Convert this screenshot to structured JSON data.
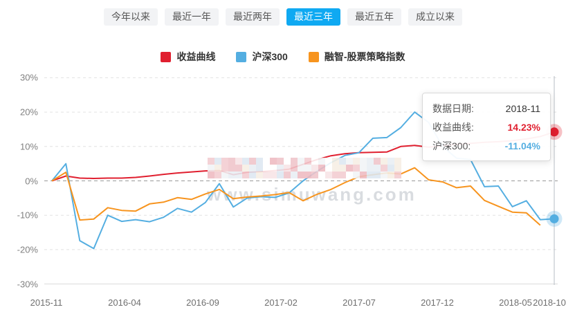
{
  "tabs": {
    "active_index": 3,
    "items": [
      {
        "label": "今年以来"
      },
      {
        "label": "最近一年"
      },
      {
        "label": "最近两年"
      },
      {
        "label": "最近三年"
      },
      {
        "label": "最近五年"
      },
      {
        "label": "成立以来"
      }
    ]
  },
  "legend": {
    "items": [
      {
        "label": "收益曲线",
        "color": "#e01f2f"
      },
      {
        "label": "沪深300",
        "color": "#54aee1"
      },
      {
        "label": "融智-股票策略指数",
        "color": "#f7941e"
      }
    ]
  },
  "tooltip": {
    "date_label": "数据日期:",
    "date_value": "2018-11",
    "rows": [
      {
        "label": "收益曲线:",
        "value": "14.23%",
        "color_class": "red"
      },
      {
        "label": "沪深300:",
        "value": "-11.04%",
        "color_class": "blue"
      }
    ]
  },
  "watermark": {
    "text": "www.simuwang.com"
  },
  "chart_data": {
    "type": "line",
    "title": "",
    "xlabel": "",
    "ylabel": "",
    "ylim": [
      -30,
      30
    ],
    "grid": "horizontal dashed",
    "legend_position": "top",
    "highlighted_x": "2018-11",
    "y_ticks": [
      "30%",
      "20%",
      "10%",
      "0%",
      "-10%",
      "-20%",
      "-30%"
    ],
    "x_tick_labels": [
      "2015-11",
      "2016-04",
      "2016-09",
      "2017-02",
      "2017-07",
      "2017-12",
      "2018-05",
      "2018-10"
    ],
    "x": [
      "2015-11",
      "2015-12",
      "2016-01",
      "2016-02",
      "2016-03",
      "2016-04",
      "2016-05",
      "2016-06",
      "2016-07",
      "2016-08",
      "2016-09",
      "2016-10",
      "2016-11",
      "2016-12",
      "2017-01",
      "2017-02",
      "2017-03",
      "2017-04",
      "2017-05",
      "2017-06",
      "2017-07",
      "2017-08",
      "2017-09",
      "2017-10",
      "2017-11",
      "2017-12",
      "2018-01",
      "2018-02",
      "2018-03",
      "2018-04",
      "2018-05",
      "2018-06",
      "2018-07",
      "2018-08",
      "2018-09",
      "2018-10",
      "2018-11"
    ],
    "series": [
      {
        "name": "收益曲线",
        "color": "#e01f2f",
        "end_marker": true,
        "values": [
          0,
          1.4,
          0.8,
          0.7,
          0.8,
          0.8,
          1.0,
          1.4,
          1.9,
          2.3,
          2.6,
          2.9,
          3.0,
          1.8,
          2.5,
          2.7,
          3.0,
          3.4,
          4.8,
          6.2,
          7.3,
          7.9,
          8.2,
          8.3,
          8.4,
          10.0,
          10.3,
          9.8,
          10.2,
          10.6,
          10.9,
          11.2,
          11.4,
          11.7,
          12.2,
          12.9,
          14.23
        ]
      },
      {
        "name": "沪深300",
        "color": "#54aee1",
        "end_marker": true,
        "values": [
          0,
          5.0,
          -17.4,
          -19.7,
          -10.0,
          -11.8,
          -11.3,
          -11.9,
          -10.6,
          -8.0,
          -9.1,
          -6.3,
          -0.8,
          -7.6,
          -5.0,
          -4.6,
          -4.8,
          -3.5,
          0.0,
          2.8,
          5.3,
          7.4,
          8.2,
          12.4,
          12.6,
          15.5,
          20.0,
          17.0,
          10.0,
          6.6,
          6.2,
          -1.7,
          -1.5,
          -7.5,
          -5.8,
          -11.3,
          -11.04
        ]
      },
      {
        "name": "融智-股票策略指数",
        "color": "#f7941e",
        "end_marker": false,
        "values": [
          0,
          2.5,
          -11.4,
          -11.1,
          -7.8,
          -8.6,
          -8.8,
          -6.7,
          -6.2,
          -4.9,
          -5.4,
          -3.8,
          -2.5,
          -5.2,
          -4.7,
          -4.4,
          -4.0,
          -3.4,
          -5.8,
          -3.9,
          -2.5,
          -0.5,
          1.2,
          1.8,
          2.3,
          2.0,
          3.8,
          0.3,
          -0.3,
          -2.0,
          -1.5,
          -5.7,
          -7.4,
          -9.1,
          -9.3,
          -12.9
        ]
      }
    ]
  }
}
